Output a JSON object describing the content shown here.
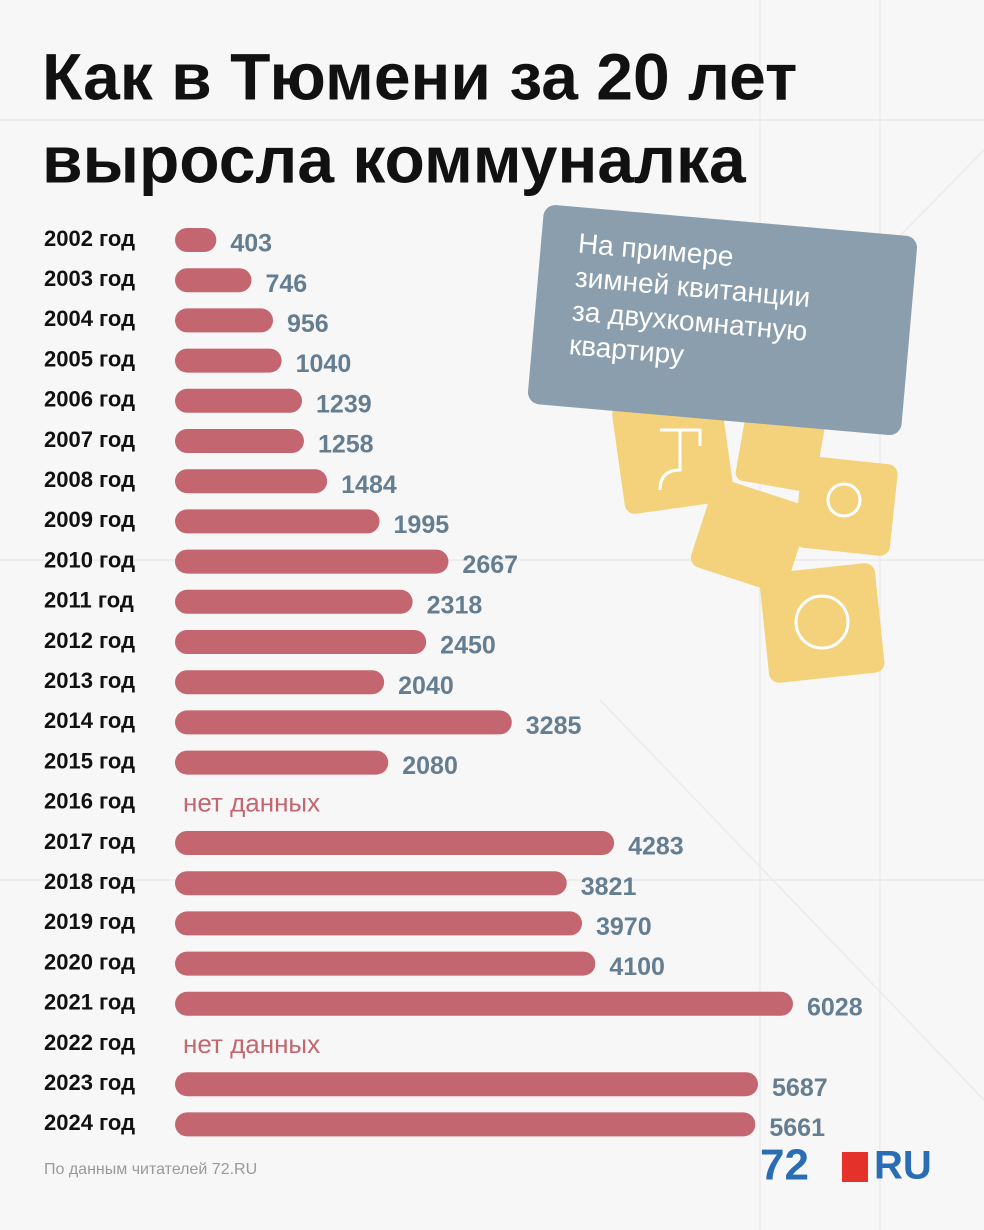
{
  "chart_data": {
    "type": "hbar",
    "title": [
      "Как в Тюмени за 20 лет",
      "выросла коммуналка"
    ],
    "categories": [
      "2002 год",
      "2003 год",
      "2004 год",
      "2005 год",
      "2006 год",
      "2007 год",
      "2008 год",
      "2009 год",
      "2010 год",
      "2011 год",
      "2012 год",
      "2013 год",
      "2014 год",
      "2015 год",
      "2016 год",
      "2017 год",
      "2018 год",
      "2019 год",
      "2020 год",
      "2021 год",
      "2022 год",
      "2023 год",
      "2024 год"
    ],
    "values": [
      403,
      746,
      956,
      1040,
      1239,
      1258,
      1484,
      1995,
      2667,
      2318,
      2450,
      2040,
      3285,
      2080,
      null,
      4283,
      3821,
      3970,
      4100,
      6028,
      null,
      5687,
      5661
    ],
    "no_data_label": "нет данных",
    "color": "#c4666f",
    "annotation": [
      "На примере",
      "зимней квитанции",
      "за двухкомнатную",
      "квартиру"
    ],
    "source": "По данным читателей 72.RU",
    "logo": [
      "72",
      "RU"
    ]
  }
}
